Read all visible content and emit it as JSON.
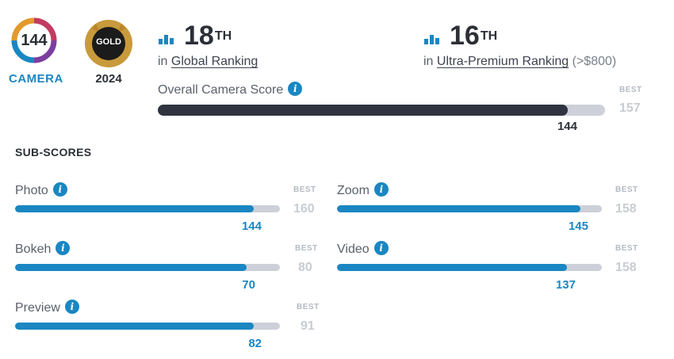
{
  "badges": {
    "score": {
      "value": "144",
      "label": "CAMERA"
    },
    "award": {
      "label": "GOLD",
      "year": "2024"
    }
  },
  "rankings": [
    {
      "rank": "18",
      "suffix": "TH",
      "prefix": "in",
      "link": "Global Ranking",
      "extra": ""
    },
    {
      "rank": "16",
      "suffix": "TH",
      "prefix": "in",
      "link": "Ultra-Premium Ranking",
      "extra": "(>$800)"
    }
  ],
  "overall": {
    "label": "Overall Camera Score",
    "score": 144,
    "best_label": "BEST",
    "best": 157
  },
  "subscores_title": "SUB-SCORES",
  "subscores": [
    {
      "name": "Photo",
      "score": 144,
      "best_label": "BEST",
      "best": 160
    },
    {
      "name": "Zoom",
      "score": 145,
      "best_label": "BEST",
      "best": 158
    },
    {
      "name": "Bokeh",
      "score": 70,
      "best_label": "BEST",
      "best": 80
    },
    {
      "name": "Video",
      "score": 137,
      "best_label": "BEST",
      "best": 158
    },
    {
      "name": "Preview",
      "score": 82,
      "best_label": "BEST",
      "best": 91
    }
  ],
  "colors": {
    "accent": "#1a87c2",
    "dark_bar": "#2f3440",
    "track": "#cdd0d8",
    "gold": "#c89a3c"
  }
}
